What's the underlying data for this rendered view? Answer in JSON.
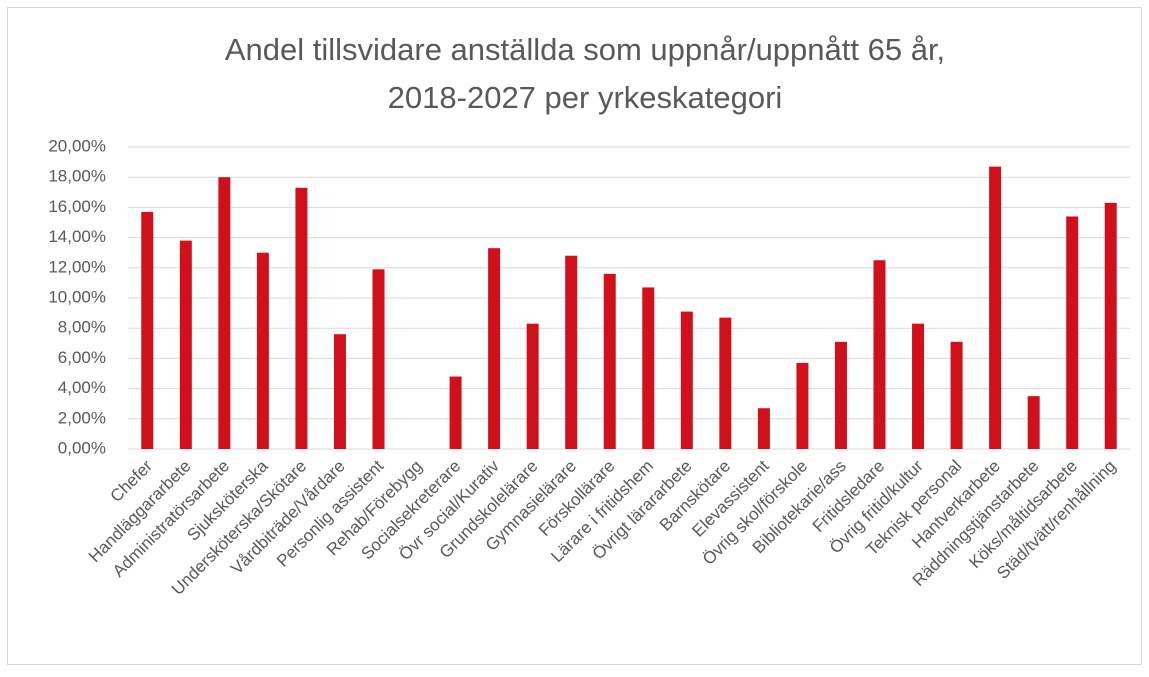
{
  "chart_data": {
    "type": "bar",
    "title": [
      "Andel tillsvidare anställda som uppnår/uppnått 65 år,",
      "2018-2027 per yrkeskategori"
    ],
    "categories": [
      "Chefer",
      "Handläggararbete",
      "Administratörsarbete",
      "Sjuksköterska",
      "Undersköterska/Skötare",
      "Vårdbiträde/Vårdare",
      "Personlig assistent",
      "Rehab/Förebygg",
      "Socialsekreterare",
      "Övr social/Kurativ",
      "Grundskolelärare",
      "Gymnasielärare",
      "Förskollärare",
      "Lärare i fritidshem",
      "Övrigt lärararbete",
      "Barnskötare",
      "Elevassistent",
      "Övrig skol/förskole",
      "Bibliotekarie/ass",
      "Fritidsledare",
      "Övrig fritid/kultur",
      "Teknisk personal",
      "Hantverkarbete",
      "Räddningstjänstarbete",
      "Köks/måltidsarbete",
      "Städ/tvätt/renhållning"
    ],
    "values": [
      15.7,
      13.8,
      18.0,
      13.0,
      17.3,
      7.6,
      11.9,
      0,
      4.8,
      13.3,
      8.3,
      12.8,
      11.6,
      10.7,
      9.1,
      8.7,
      2.7,
      5.7,
      7.1,
      12.5,
      8.3,
      7.1,
      18.7,
      3.5,
      15.4,
      16.3
    ],
    "color": "#d0111b",
    "ylim": [
      0,
      20
    ],
    "yticks": [
      {
        "value": 0,
        "label": "0,00%"
      },
      {
        "value": 2,
        "label": "2,00%"
      },
      {
        "value": 4,
        "label": "4,00%"
      },
      {
        "value": 6,
        "label": "6,00%"
      },
      {
        "value": 8,
        "label": "8,00%"
      },
      {
        "value": 10,
        "label": "10,00%"
      },
      {
        "value": 12,
        "label": "12,00%"
      },
      {
        "value": 14,
        "label": "14,00%"
      },
      {
        "value": 16,
        "label": "16,00%"
      },
      {
        "value": 18,
        "label": "18,00%"
      },
      {
        "value": 20,
        "label": "20,00%"
      }
    ],
    "grid": true
  }
}
